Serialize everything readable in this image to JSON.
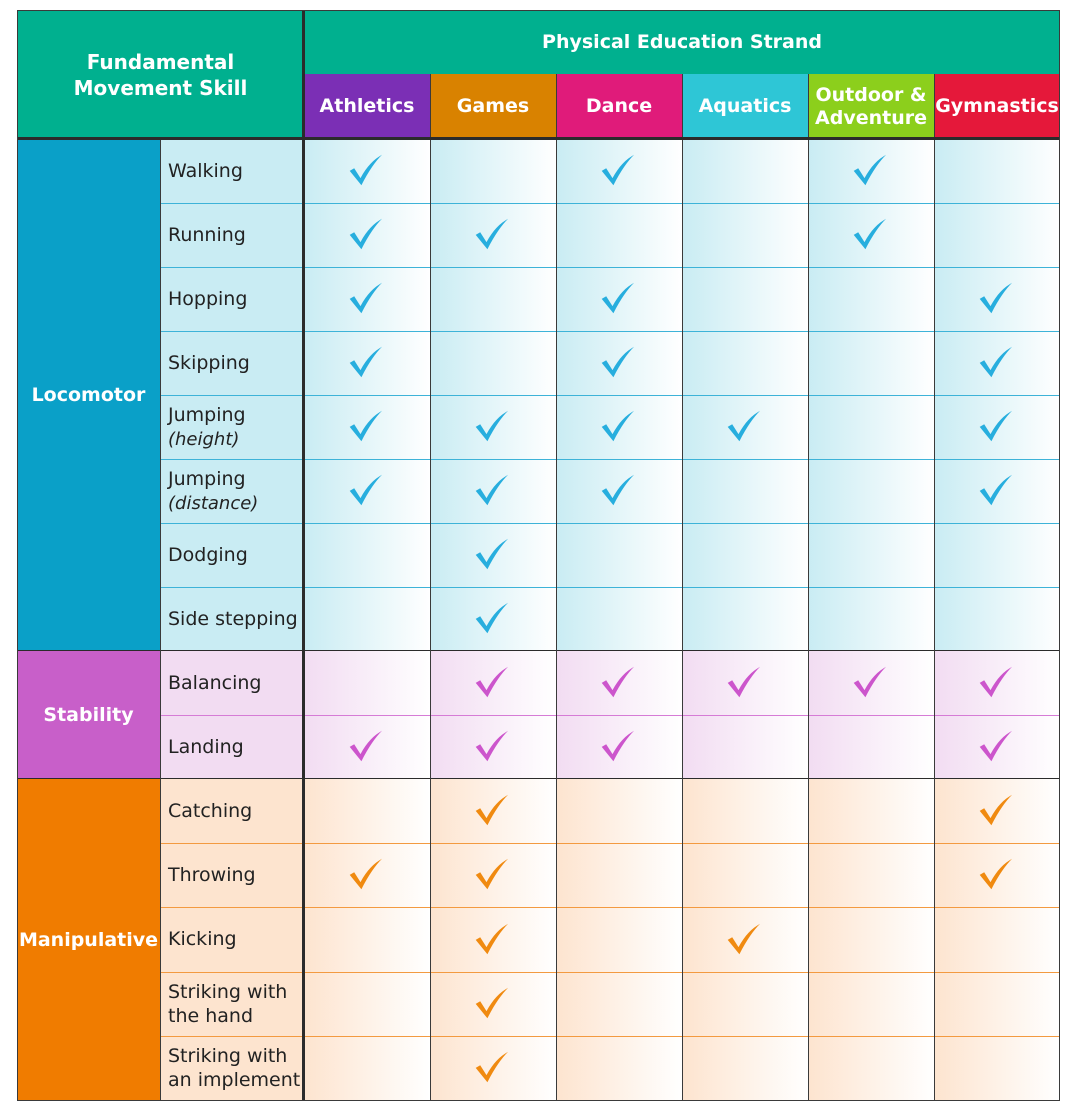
{
  "header": {
    "fundamental_movement_skill": "Fundamental Movement Skill",
    "strand_title": "Physical Education Strand",
    "strands": [
      {
        "label": "Athletics",
        "color": "#7b2fb5"
      },
      {
        "label": "Games",
        "color": "#d98200"
      },
      {
        "label": "Dance",
        "color": "#e01b7a"
      },
      {
        "label": "Aquatics",
        "color": "#2ec6d6"
      },
      {
        "label": "Outdoor & Adventure",
        "color": "#8ccf1c"
      },
      {
        "label": "Gymnastics",
        "color": "#e5183a"
      }
    ]
  },
  "categories": [
    {
      "name": "Locomotor",
      "color": "#0aa0c8",
      "tick_color": "#27aede",
      "row_bg": "#c9ecf3",
      "line_color": "#3db3d8",
      "skills": [
        {
          "label": "Walking",
          "sub": "",
          "checks": [
            true,
            false,
            true,
            false,
            true,
            false
          ]
        },
        {
          "label": "Running",
          "sub": "",
          "checks": [
            true,
            true,
            false,
            false,
            true,
            false
          ]
        },
        {
          "label": "Hopping",
          "sub": "",
          "checks": [
            true,
            false,
            true,
            false,
            false,
            true
          ]
        },
        {
          "label": "Skipping",
          "sub": "",
          "checks": [
            true,
            false,
            true,
            false,
            false,
            true
          ]
        },
        {
          "label": "Jumping",
          "sub": "(height)",
          "checks": [
            true,
            true,
            true,
            true,
            false,
            true
          ]
        },
        {
          "label": "Jumping",
          "sub": "(distance)",
          "checks": [
            true,
            true,
            true,
            false,
            false,
            true
          ]
        },
        {
          "label": "Dodging",
          "sub": "",
          "checks": [
            false,
            true,
            false,
            false,
            false,
            false
          ]
        },
        {
          "label": "Side stepping",
          "sub": "",
          "checks": [
            false,
            true,
            false,
            false,
            false,
            false
          ]
        }
      ]
    },
    {
      "name": "Stability",
      "color": "#c85fc9",
      "tick_color": "#cc55cc",
      "row_bg": "#f2dcf2",
      "line_color": "#d67bd6",
      "skills": [
        {
          "label": "Balancing",
          "sub": "",
          "checks": [
            false,
            true,
            true,
            true,
            true,
            true
          ]
        },
        {
          "label": "Landing",
          "sub": "",
          "checks": [
            true,
            true,
            true,
            false,
            false,
            true
          ]
        }
      ]
    },
    {
      "name": "Manipulative",
      "color": "#f07c00",
      "tick_color": "#f08a10",
      "row_bg": "#fde4cf",
      "line_color": "#f39a40",
      "skills": [
        {
          "label": "Catching",
          "sub": "",
          "checks": [
            false,
            true,
            false,
            false,
            false,
            true
          ]
        },
        {
          "label": "Throwing",
          "sub": "",
          "checks": [
            true,
            true,
            false,
            false,
            false,
            true
          ]
        },
        {
          "label": "Kicking",
          "sub": "",
          "checks": [
            false,
            true,
            false,
            true,
            false,
            false
          ]
        },
        {
          "label": "Striking with the hand",
          "sub": "",
          "checks": [
            false,
            true,
            false,
            false,
            false,
            false
          ]
        },
        {
          "label": "Striking with an implement",
          "sub": "",
          "checks": [
            false,
            true,
            false,
            false,
            false,
            false
          ]
        }
      ]
    }
  ]
}
